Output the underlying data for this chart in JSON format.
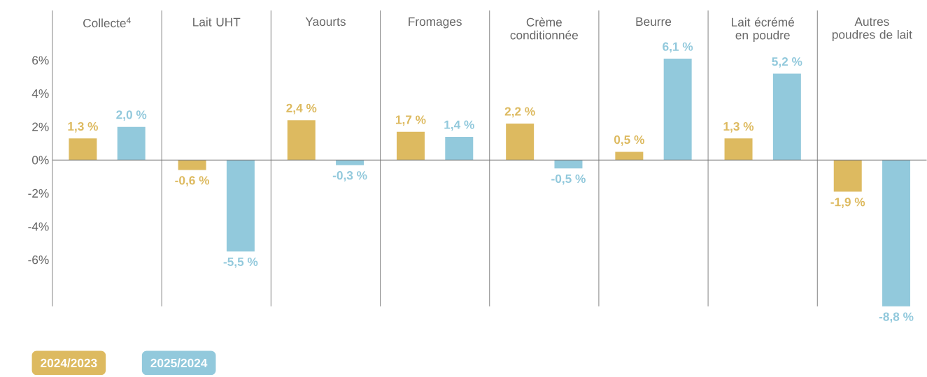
{
  "chart_data": {
    "type": "bar",
    "categories": [
      "Collecte$^{4}$",
      "Lait UHT",
      "Yaourts",
      "Fromages",
      "Crème conditionnée",
      "Beurre",
      "Lait écrémé en poudre",
      "Autres poudres de lait"
    ],
    "series": [
      {
        "name": "2024/2023",
        "color": "#ddba60",
        "values": [
          1.3,
          -0.6,
          2.4,
          1.7,
          2.2,
          0.5,
          1.3,
          -1.9
        ],
        "value_labels": [
          "1,3 %",
          "-0,6 %",
          "2,4 %",
          "1,7 %",
          "2,2 %",
          "0,5 %",
          "1,3 %",
          "-1,9 %"
        ]
      },
      {
        "name": "2025/2024",
        "color": "#92c9dc",
        "values": [
          2.0,
          -5.5,
          -0.3,
          1.4,
          -0.5,
          6.1,
          5.2,
          -8.8
        ],
        "value_labels": [
          "2,0 %",
          "-5,5 %",
          "-0,3 %",
          "1,4 %",
          "-0,5 %",
          "6,1 %",
          "5,2 %",
          "-8,8 %"
        ]
      }
    ],
    "ylim": [
      -8.8,
      9
    ],
    "yticks": [
      {
        "value": -6,
        "label": "-6%"
      },
      {
        "value": -4,
        "label": "-4%"
      },
      {
        "value": -2,
        "label": "-2%"
      },
      {
        "value": 0,
        "label": "0%"
      },
      {
        "value": 2,
        "label": "2%"
      },
      {
        "value": 4,
        "label": "4%"
      },
      {
        "value": 6,
        "label": "6%"
      }
    ],
    "grid": "x",
    "legend": "bottom left"
  }
}
